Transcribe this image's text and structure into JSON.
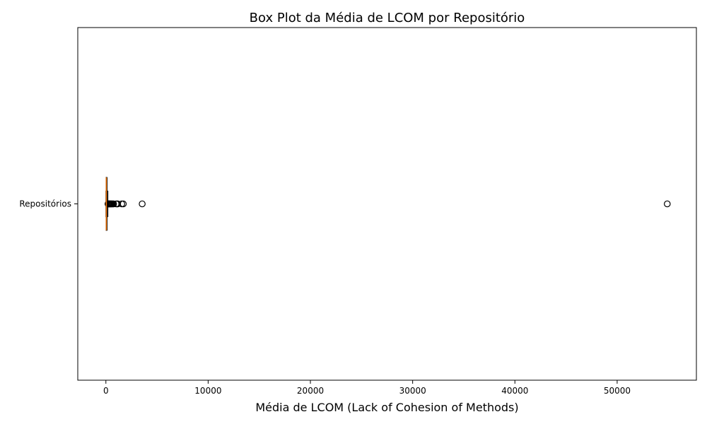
{
  "chart_data": {
    "type": "boxplot",
    "orientation": "horizontal",
    "title": "Box Plot da Média de LCOM por Repositório",
    "xlabel": "Média de LCOM (Lack of Cohesion of Methods)",
    "ylabel": "",
    "xlim": [
      -2750,
      57750
    ],
    "x_ticks": [
      0,
      10000,
      20000,
      30000,
      40000,
      50000
    ],
    "x_tick_labels": [
      "0",
      "10000",
      "20000",
      "30000",
      "40000",
      "50000"
    ],
    "categories": [
      "Repositórios"
    ],
    "boxes": [
      {
        "category": "Repositórios",
        "whisker_low": 0,
        "q1": 15,
        "median": 40,
        "q3": 90,
        "whisker_high": 200,
        "outliers": [
          210,
          230,
          250,
          270,
          300,
          330,
          360,
          400,
          430,
          470,
          520,
          570,
          620,
          700,
          750,
          1000,
          1100,
          1150,
          1550,
          1700,
          3550,
          54900
        ]
      }
    ],
    "colors": {
      "median": "#ff7f0e",
      "box": "#000000",
      "outlier_edge": "#000000"
    },
    "grid": false
  }
}
